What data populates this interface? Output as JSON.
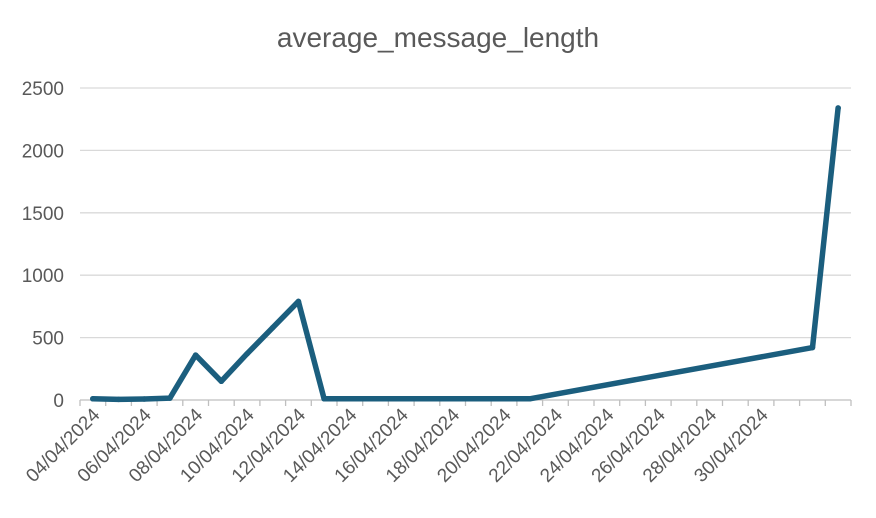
{
  "chart_data": {
    "type": "line",
    "title": "average_message_length",
    "xlabel": "",
    "ylabel": "",
    "ylim": [
      0,
      2500
    ],
    "yticks": [
      0,
      500,
      1000,
      1500,
      2000,
      2500
    ],
    "xlim": [
      "2024-04-04",
      "2024-05-03"
    ],
    "x_tick_labels": [
      "04/04/2024",
      "06/04/2024",
      "08/04/2024",
      "10/04/2024",
      "12/04/2024",
      "14/04/2024",
      "16/04/2024",
      "18/04/2024",
      "20/04/2024",
      "22/04/2024",
      "24/04/2024",
      "26/04/2024",
      "28/04/2024",
      "30/04/2024"
    ],
    "grid": true,
    "legend": "none",
    "series": [
      {
        "color": "#1b5e7e",
        "points": [
          {
            "x": "2024-04-04",
            "y": 10
          },
          {
            "x": "2024-04-05",
            "y": 5
          },
          {
            "x": "2024-04-06",
            "y": 8
          },
          {
            "x": "2024-04-07",
            "y": 15
          },
          {
            "x": "2024-04-08",
            "y": 360
          },
          {
            "x": "2024-04-09",
            "y": 150
          },
          {
            "x": "2024-04-10",
            "y": 370
          },
          {
            "x": "2024-04-11",
            "y": 580
          },
          {
            "x": "2024-04-12",
            "y": 790
          },
          {
            "x": "2024-04-13",
            "y": 10
          },
          {
            "x": "2024-04-21",
            "y": 10
          },
          {
            "x": "2024-05-02",
            "y": 420
          },
          {
            "x": "2024-05-03",
            "y": 2340
          }
        ]
      }
    ]
  }
}
